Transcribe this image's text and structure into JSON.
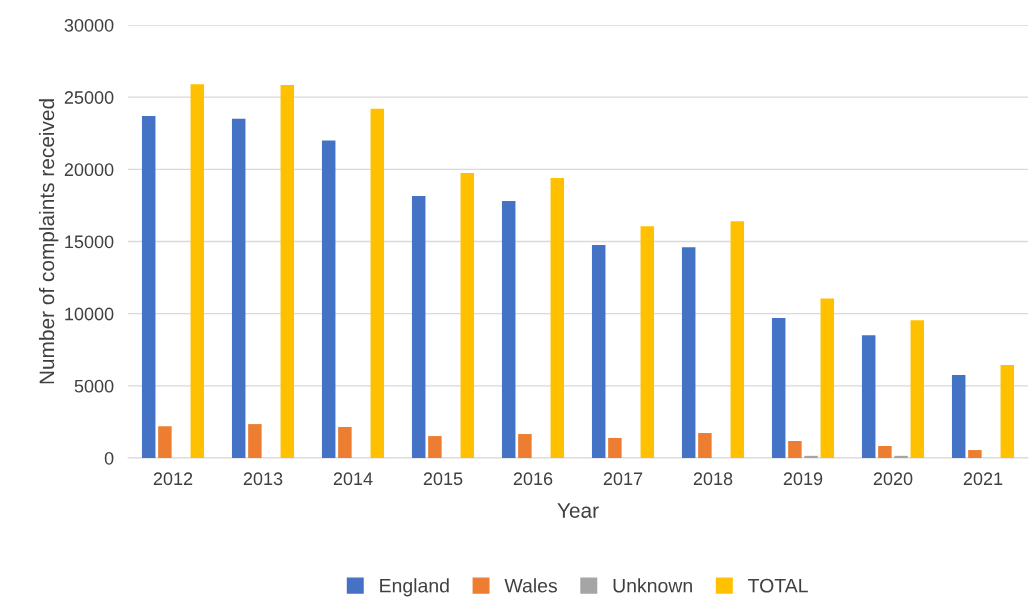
{
  "chart_data": {
    "type": "bar",
    "xlabel": "Year",
    "ylabel": "Number of complaints received",
    "categories": [
      "2012",
      "2013",
      "2014",
      "2015",
      "2016",
      "2017",
      "2018",
      "2019",
      "2020",
      "2021"
    ],
    "series": [
      {
        "name": "England",
        "color": "#4472c4",
        "values": [
          23700,
          23500,
          22000,
          18150,
          17800,
          14750,
          14600,
          9700,
          8500,
          5750
        ]
      },
      {
        "name": "Wales",
        "color": "#ed7d31",
        "values": [
          2200,
          2350,
          2150,
          1520,
          1660,
          1390,
          1730,
          1180,
          830,
          550
        ]
      },
      {
        "name": "Unknown",
        "color": "#a5a5a5",
        "values": [
          0,
          0,
          0,
          0,
          0,
          0,
          0,
          150,
          150,
          0
        ]
      },
      {
        "name": "TOTAL",
        "color": "#ffc000",
        "values": [
          25900,
          25850,
          24200,
          19750,
          19400,
          16050,
          16400,
          11050,
          9550,
          6450
        ]
      }
    ],
    "ylim": [
      0,
      30000
    ],
    "yticks": [
      0,
      5000,
      10000,
      15000,
      20000,
      25000,
      30000
    ],
    "grid": "y",
    "legend": "bottom"
  }
}
